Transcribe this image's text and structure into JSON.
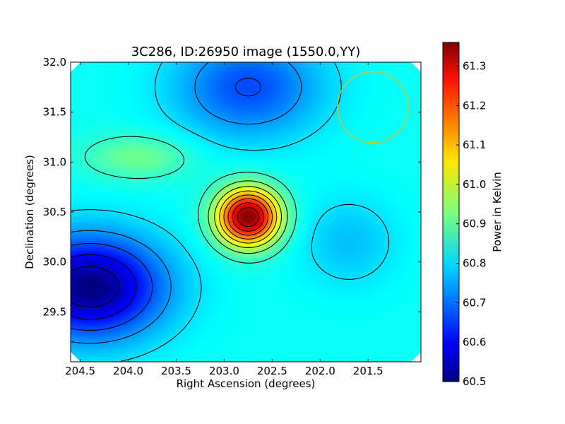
{
  "chart_data": {
    "type": "heatmap",
    "title": "3C286, ID:26950 image (1550.0,YY)",
    "xlabel": "Right Ascension (degrees)",
    "ylabel": "Declination (degrees)",
    "xlim": [
      204.6,
      200.95
    ],
    "ylim": [
      29.0,
      32.0
    ],
    "xticks": [
      "204.5",
      "204.0",
      "203.5",
      "203.0",
      "202.5",
      "202.0",
      "201.5"
    ],
    "yticks": [
      "29.5",
      "30.0",
      "30.5",
      "31.0",
      "31.5",
      "32.0"
    ],
    "colorbar": {
      "label": "Power in Kelvin",
      "range": [
        60.5,
        61.36
      ],
      "ticks": [
        "60.5",
        "60.6",
        "60.7",
        "60.8",
        "60.9",
        "61.0",
        "61.1",
        "61.2",
        "61.3"
      ],
      "colormap": "jet"
    },
    "field": {
      "base": 60.83,
      "features": [
        {
          "kind": "peak",
          "ra": 202.75,
          "dec": 30.45,
          "value": 61.36
        },
        {
          "kind": "trough",
          "ra": 204.4,
          "dec": 29.75,
          "value": 60.5
        },
        {
          "kind": "trough",
          "ra": 202.75,
          "dec": 31.75,
          "value": 60.67
        },
        {
          "kind": "bump",
          "ra": 203.9,
          "dec": 31.05,
          "value": 60.92
        },
        {
          "kind": "dip",
          "ra": 201.7,
          "dec": 30.2,
          "value": 60.77
        }
      ]
    },
    "annotations": [
      {
        "kind": "circle",
        "ra": 201.45,
        "dec": 31.55,
        "radius_deg": 0.37,
        "color": "#c8c832"
      }
    ],
    "contour_color": "#000000"
  }
}
